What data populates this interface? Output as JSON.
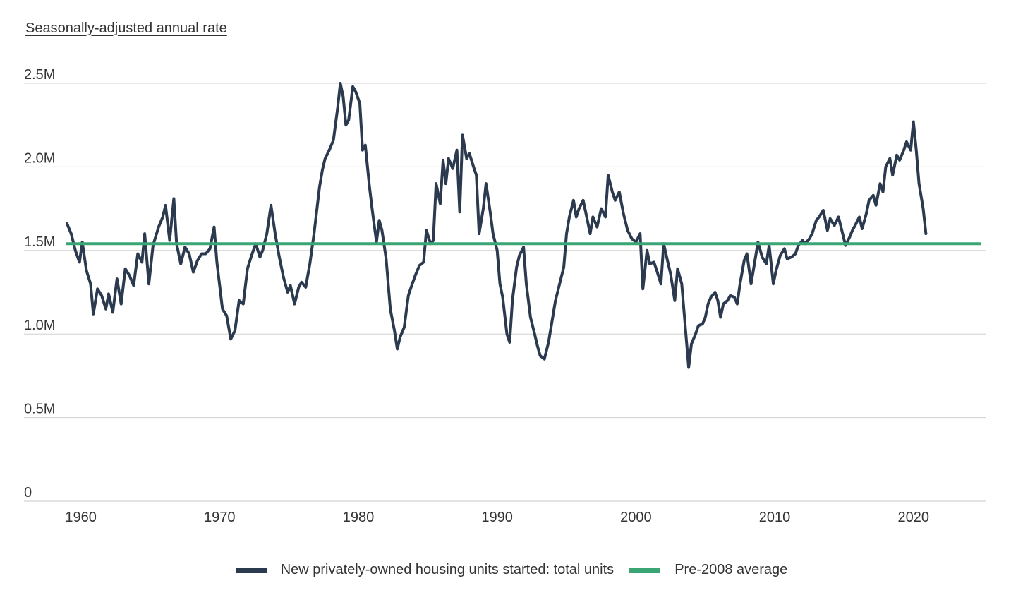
{
  "chart_data": {
    "type": "line",
    "ylabel": "Seasonally-adjusted annual rate",
    "ylim": [
      0,
      2500000
    ],
    "xlim": [
      1955.9,
      2025.2
    ],
    "yticks": [
      {
        "value": 0,
        "label": "0"
      },
      {
        "value": 500000,
        "label": "0.5M"
      },
      {
        "value": 1000000,
        "label": "1.0M"
      },
      {
        "value": 1500000,
        "label": "1.5M"
      },
      {
        "value": 2000000,
        "label": "2.0M"
      },
      {
        "value": 2500000,
        "label": "2.5M"
      }
    ],
    "xticks": [
      {
        "value": 1960,
        "label": "1960"
      },
      {
        "value": 1970,
        "label": "1970"
      },
      {
        "value": 1980,
        "label": "1980"
      },
      {
        "value": 1990,
        "label": "1990"
      },
      {
        "value": 2000,
        "label": "2000"
      },
      {
        "value": 2010,
        "label": "2010"
      },
      {
        "value": 2020,
        "label": "2020"
      }
    ],
    "grid": true,
    "legend_position": "bottom",
    "series": [
      {
        "name": "New privately-owned housing units started: total units",
        "color": "#2b3a4e",
        "points": [
          [
            1959.0,
            1660000
          ],
          [
            1959.3,
            1600000
          ],
          [
            1959.6,
            1500000
          ],
          [
            1959.9,
            1430000
          ],
          [
            1960.1,
            1550000
          ],
          [
            1960.4,
            1380000
          ],
          [
            1960.7,
            1300000
          ],
          [
            1960.9,
            1120000
          ],
          [
            1961.2,
            1270000
          ],
          [
            1961.5,
            1230000
          ],
          [
            1961.8,
            1150000
          ],
          [
            1962.0,
            1240000
          ],
          [
            1962.3,
            1130000
          ],
          [
            1962.6,
            1330000
          ],
          [
            1962.9,
            1180000
          ],
          [
            1963.2,
            1390000
          ],
          [
            1963.5,
            1350000
          ],
          [
            1963.8,
            1290000
          ],
          [
            1964.1,
            1480000
          ],
          [
            1964.4,
            1430000
          ],
          [
            1964.6,
            1600000
          ],
          [
            1964.9,
            1300000
          ],
          [
            1965.2,
            1530000
          ],
          [
            1965.6,
            1640000
          ],
          [
            1965.9,
            1700000
          ],
          [
            1966.1,
            1770000
          ],
          [
            1966.4,
            1560000
          ],
          [
            1966.7,
            1810000
          ],
          [
            1966.9,
            1540000
          ],
          [
            1967.2,
            1420000
          ],
          [
            1967.5,
            1520000
          ],
          [
            1967.8,
            1480000
          ],
          [
            1968.1,
            1370000
          ],
          [
            1968.4,
            1440000
          ],
          [
            1968.7,
            1480000
          ],
          [
            1969.0,
            1480000
          ],
          [
            1969.3,
            1510000
          ],
          [
            1969.6,
            1640000
          ],
          [
            1969.8,
            1430000
          ],
          [
            1970.2,
            1150000
          ],
          [
            1970.5,
            1110000
          ],
          [
            1970.8,
            970000
          ],
          [
            1971.1,
            1020000
          ],
          [
            1971.4,
            1200000
          ],
          [
            1971.7,
            1180000
          ],
          [
            1972.0,
            1390000
          ],
          [
            1972.3,
            1470000
          ],
          [
            1972.6,
            1540000
          ],
          [
            1972.9,
            1460000
          ],
          [
            1973.1,
            1500000
          ],
          [
            1973.4,
            1600000
          ],
          [
            1973.7,
            1770000
          ],
          [
            1974.0,
            1600000
          ],
          [
            1974.3,
            1460000
          ],
          [
            1974.6,
            1340000
          ],
          [
            1974.9,
            1250000
          ],
          [
            1975.1,
            1290000
          ],
          [
            1975.4,
            1180000
          ],
          [
            1975.7,
            1280000
          ],
          [
            1975.9,
            1310000
          ],
          [
            1976.2,
            1280000
          ],
          [
            1976.5,
            1420000
          ],
          [
            1976.8,
            1600000
          ],
          [
            1977.0,
            1740000
          ],
          [
            1977.2,
            1880000
          ],
          [
            1977.4,
            1980000
          ],
          [
            1977.6,
            2050000
          ],
          [
            1977.9,
            2100000
          ],
          [
            1978.2,
            2160000
          ],
          [
            1978.5,
            2350000
          ],
          [
            1978.7,
            2500000
          ],
          [
            1978.9,
            2420000
          ],
          [
            1979.1,
            2250000
          ],
          [
            1979.3,
            2280000
          ],
          [
            1979.6,
            2480000
          ],
          [
            1979.8,
            2450000
          ],
          [
            1980.1,
            2380000
          ],
          [
            1980.3,
            2100000
          ],
          [
            1980.5,
            2130000
          ],
          [
            1980.8,
            1880000
          ],
          [
            1981.0,
            1740000
          ],
          [
            1981.3,
            1550000
          ],
          [
            1981.5,
            1680000
          ],
          [
            1981.7,
            1620000
          ],
          [
            1982.0,
            1450000
          ],
          [
            1982.3,
            1150000
          ],
          [
            1982.6,
            1020000
          ],
          [
            1982.8,
            910000
          ],
          [
            1983.0,
            980000
          ],
          [
            1983.3,
            1040000
          ],
          [
            1983.6,
            1230000
          ],
          [
            1983.8,
            1280000
          ],
          [
            1984.1,
            1350000
          ],
          [
            1984.4,
            1410000
          ],
          [
            1984.7,
            1430000
          ],
          [
            1984.9,
            1620000
          ],
          [
            1985.2,
            1540000
          ],
          [
            1985.4,
            1560000
          ],
          [
            1985.6,
            1900000
          ],
          [
            1985.9,
            1780000
          ],
          [
            1986.1,
            2040000
          ],
          [
            1986.3,
            1900000
          ],
          [
            1986.5,
            2050000
          ],
          [
            1986.8,
            1990000
          ],
          [
            1987.1,
            2100000
          ],
          [
            1987.3,
            1730000
          ],
          [
            1987.5,
            2190000
          ],
          [
            1987.8,
            2050000
          ],
          [
            1988.0,
            2080000
          ],
          [
            1988.3,
            2000000
          ],
          [
            1988.5,
            1950000
          ],
          [
            1988.7,
            1600000
          ],
          [
            1989.0,
            1750000
          ],
          [
            1989.2,
            1900000
          ],
          [
            1989.5,
            1730000
          ],
          [
            1989.7,
            1600000
          ],
          [
            1990.0,
            1500000
          ],
          [
            1990.2,
            1300000
          ],
          [
            1990.4,
            1220000
          ],
          [
            1990.7,
            1000000
          ],
          [
            1990.9,
            950000
          ],
          [
            1991.1,
            1200000
          ],
          [
            1991.4,
            1400000
          ],
          [
            1991.6,
            1470000
          ],
          [
            1991.9,
            1520000
          ],
          [
            1992.1,
            1300000
          ],
          [
            1992.4,
            1100000
          ],
          [
            1992.7,
            1000000
          ],
          [
            1992.9,
            930000
          ],
          [
            1993.1,
            870000
          ],
          [
            1993.4,
            850000
          ],
          [
            1993.7,
            950000
          ],
          [
            1994.0,
            1100000
          ],
          [
            1994.2,
            1200000
          ],
          [
            1994.5,
            1300000
          ],
          [
            1994.8,
            1400000
          ],
          [
            1995.0,
            1600000
          ],
          [
            1995.2,
            1700000
          ],
          [
            1995.5,
            1800000
          ],
          [
            1995.7,
            1700000
          ],
          [
            1995.9,
            1750000
          ],
          [
            1996.2,
            1800000
          ],
          [
            1996.4,
            1720000
          ],
          [
            1996.7,
            1600000
          ],
          [
            1996.9,
            1700000
          ],
          [
            1997.2,
            1640000
          ],
          [
            1997.5,
            1750000
          ],
          [
            1997.8,
            1700000
          ],
          [
            1998.0,
            1950000
          ],
          [
            1998.3,
            1850000
          ],
          [
            1998.5,
            1800000
          ],
          [
            1998.8,
            1850000
          ],
          [
            1999.1,
            1720000
          ],
          [
            1999.4,
            1620000
          ],
          [
            1999.7,
            1570000
          ],
          [
            2000.0,
            1550000
          ],
          [
            2000.3,
            1600000
          ],
          [
            2000.5,
            1270000
          ],
          [
            2000.8,
            1500000
          ],
          [
            2001.0,
            1420000
          ],
          [
            2001.3,
            1430000
          ],
          [
            2001.5,
            1380000
          ],
          [
            2001.8,
            1300000
          ],
          [
            2002.0,
            1540000
          ],
          [
            2002.3,
            1430000
          ],
          [
            2002.5,
            1360000
          ],
          [
            2002.8,
            1200000
          ],
          [
            2003.0,
            1390000
          ],
          [
            2003.3,
            1300000
          ],
          [
            2003.5,
            1100000
          ],
          [
            2003.8,
            800000
          ],
          [
            2004.0,
            940000
          ],
          [
            2004.3,
            1000000
          ],
          [
            2004.5,
            1050000
          ],
          [
            2004.8,
            1060000
          ],
          [
            2005.0,
            1100000
          ],
          [
            2005.2,
            1180000
          ],
          [
            2005.4,
            1220000
          ],
          [
            2005.7,
            1250000
          ],
          [
            2005.9,
            1200000
          ],
          [
            2006.1,
            1100000
          ],
          [
            2006.3,
            1180000
          ],
          [
            2006.6,
            1200000
          ],
          [
            2006.8,
            1230000
          ],
          [
            2007.1,
            1220000
          ],
          [
            2007.3,
            1180000
          ],
          [
            2007.5,
            1300000
          ],
          [
            2007.8,
            1440000
          ],
          [
            2008.0,
            1480000
          ],
          [
            2008.3,
            1300000
          ],
          [
            2008.6,
            1450000
          ],
          [
            2008.8,
            1550000
          ],
          [
            2009.1,
            1460000
          ],
          [
            2009.4,
            1420000
          ],
          [
            2009.6,
            1530000
          ],
          [
            2009.9,
            1300000
          ],
          [
            2010.1,
            1380000
          ],
          [
            2010.4,
            1470000
          ],
          [
            2010.7,
            1510000
          ],
          [
            2010.9,
            1450000
          ],
          [
            2011.2,
            1460000
          ],
          [
            2011.5,
            1480000
          ],
          [
            2011.7,
            1530000
          ],
          [
            2012.0,
            1560000
          ],
          [
            2012.2,
            1540000
          ],
          [
            2012.5,
            1570000
          ],
          [
            2012.7,
            1600000
          ],
          [
            2013.0,
            1680000
          ],
          [
            2013.2,
            1700000
          ],
          [
            2013.5,
            1740000
          ],
          [
            2013.8,
            1620000
          ],
          [
            2014.0,
            1690000
          ],
          [
            2014.3,
            1650000
          ],
          [
            2014.6,
            1700000
          ],
          [
            2014.9,
            1600000
          ],
          [
            2015.1,
            1530000
          ],
          [
            2015.4,
            1580000
          ],
          [
            2015.6,
            1620000
          ],
          [
            2015.8,
            1650000
          ],
          [
            2016.1,
            1700000
          ],
          [
            2016.3,
            1630000
          ],
          [
            2016.6,
            1720000
          ],
          [
            2016.8,
            1800000
          ],
          [
            2017.1,
            1830000
          ],
          [
            2017.3,
            1770000
          ],
          [
            2017.6,
            1900000
          ],
          [
            2017.8,
            1850000
          ],
          [
            2018.0,
            2000000
          ],
          [
            2018.3,
            2050000
          ],
          [
            2018.5,
            1950000
          ],
          [
            2018.8,
            2070000
          ],
          [
            2019.0,
            2040000
          ],
          [
            2019.3,
            2100000
          ],
          [
            2019.5,
            2150000
          ],
          [
            2019.8,
            2100000
          ],
          [
            2020.0,
            2270000
          ],
          [
            2020.2,
            2100000
          ],
          [
            2020.4,
            1900000
          ],
          [
            2020.7,
            1750000
          ],
          [
            2020.9,
            1600000
          ]
        ]
      },
      {
        "name": "Pre-2008 average",
        "color": "#3aa676",
        "points": [
          [
            1959.0,
            1540000
          ],
          [
            2024.8,
            1540000
          ]
        ]
      }
    ]
  }
}
